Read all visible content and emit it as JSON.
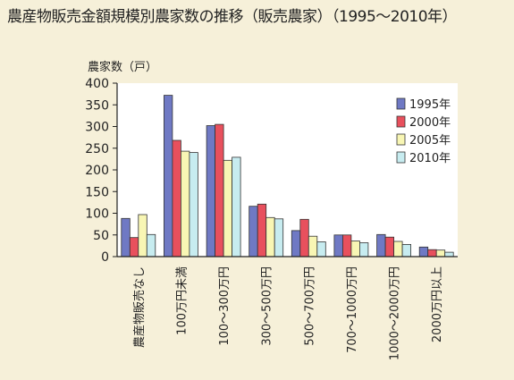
{
  "page_title": "農産物販売金額規模別農家数の推移（販売農家）（1995～2010年）",
  "chart_data": {
    "type": "bar",
    "title": "農産物販売金額規模別農家数の推移（販売農家）（1995～2010年）",
    "ylabel": "農家数（戸）",
    "xlabel": "",
    "ylim": [
      0,
      400
    ],
    "yticks": [
      0,
      50,
      100,
      150,
      200,
      250,
      300,
      350,
      400
    ],
    "grid": false,
    "legend_position": "top-right",
    "categories": [
      "農産物販売なし",
      "100万円未満",
      "100～300万円",
      "300～500万円",
      "500～700万円",
      "700～1000万円",
      "1000～2000万円",
      "2000万円以上"
    ],
    "series": [
      {
        "name": "1995年",
        "color": "#6f79c4",
        "values": [
          88,
          372,
          302,
          116,
          60,
          50,
          51,
          22
        ]
      },
      {
        "name": "2000年",
        "color": "#e8505d",
        "values": [
          44,
          268,
          305,
          121,
          86,
          50,
          45,
          16
        ]
      },
      {
        "name": "2005年",
        "color": "#f8f6b4",
        "values": [
          97,
          243,
          222,
          90,
          47,
          36,
          35,
          15
        ]
      },
      {
        "name": "2010年",
        "color": "#c7ecf0",
        "values": [
          51,
          240,
          229,
          87,
          34,
          32,
          28,
          10
        ]
      }
    ]
  }
}
